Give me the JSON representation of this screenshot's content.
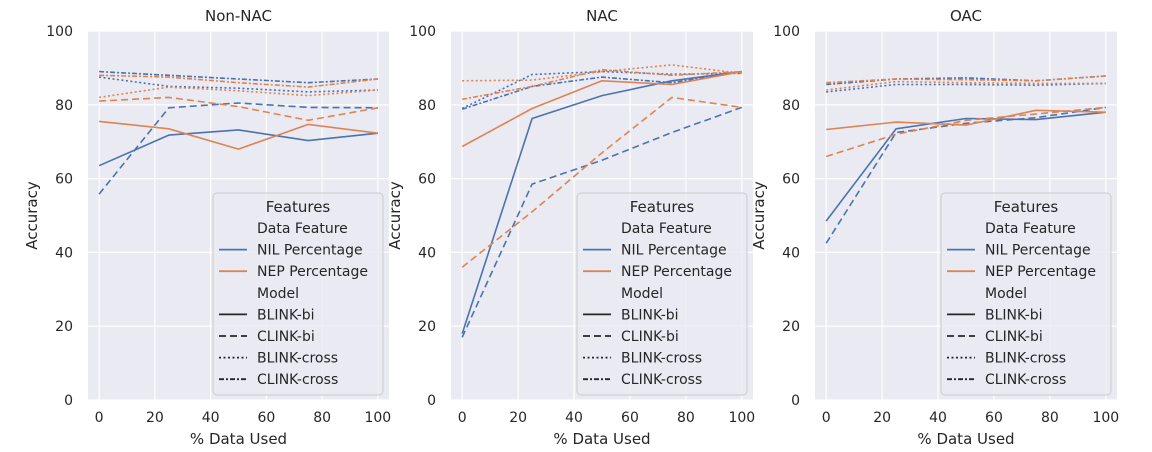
{
  "chart_data": {
    "type": "line",
    "figure_panels": [
      "Non-NAC",
      "NAC",
      "OAC"
    ],
    "xlabel": "% Data Used",
    "ylabel": "Accuracy",
    "x": [
      0,
      25,
      50,
      75,
      100
    ],
    "xticks": [
      "0",
      "20",
      "40",
      "60",
      "80",
      "100"
    ],
    "yticks": [
      "0",
      "20",
      "40",
      "60",
      "80",
      "100"
    ],
    "xlim": [
      -4,
      104
    ],
    "ylim": [
      0,
      100
    ],
    "grid": true,
    "legend": {
      "title": "Features",
      "sub_feature": "Data Feature",
      "sub_model": "Model",
      "features": [
        "NIL Percentage",
        "NEP Percentage"
      ],
      "models": [
        "BLINK-bi",
        "CLINK-bi",
        "BLINK-cross",
        "CLINK-cross"
      ],
      "placement": "lower-right"
    },
    "colors": {
      "NIL Percentage": "#4c72b0",
      "NEP Percentage": "#dd8452",
      "background": "#eaeaf2",
      "grid": "#ffffff"
    },
    "panels": [
      {
        "title": "Non-NAC",
        "series": [
          {
            "feature": "NIL Percentage",
            "model": "BLINK-bi",
            "values": [
              63.5,
              71.8,
              73.2,
              70.3,
              72.3
            ]
          },
          {
            "feature": "NIL Percentage",
            "model": "CLINK-bi",
            "values": [
              55.8,
              79.2,
              80.5,
              79.3,
              79.2
            ]
          },
          {
            "feature": "NIL Percentage",
            "model": "BLINK-cross",
            "values": [
              87.5,
              85.0,
              84.5,
              83.5,
              84.0
            ]
          },
          {
            "feature": "NIL Percentage",
            "model": "CLINK-cross",
            "values": [
              89.0,
              88.0,
              87.0,
              86.0,
              87.0
            ]
          },
          {
            "feature": "NEP Percentage",
            "model": "BLINK-bi",
            "values": [
              75.5,
              73.5,
              68.0,
              74.7,
              72.3
            ]
          },
          {
            "feature": "NEP Percentage",
            "model": "CLINK-bi",
            "values": [
              81.0,
              82.0,
              79.5,
              75.8,
              79.2
            ]
          },
          {
            "feature": "NEP Percentage",
            "model": "BLINK-cross",
            "values": [
              82.0,
              84.8,
              83.8,
              82.5,
              84.0
            ]
          },
          {
            "feature": "NEP Percentage",
            "model": "CLINK-cross",
            "values": [
              88.0,
              87.5,
              86.0,
              84.8,
              87.0
            ]
          }
        ]
      },
      {
        "title": "NAC",
        "series": [
          {
            "feature": "NIL Percentage",
            "model": "BLINK-bi",
            "values": [
              18.0,
              76.3,
              82.5,
              86.5,
              89.0
            ]
          },
          {
            "feature": "NIL Percentage",
            "model": "CLINK-bi",
            "values": [
              17.0,
              58.5,
              65.0,
              72.5,
              79.3
            ]
          },
          {
            "feature": "NIL Percentage",
            "model": "BLINK-cross",
            "values": [
              79.0,
              88.2,
              89.0,
              88.3,
              88.5
            ]
          },
          {
            "feature": "NIL Percentage",
            "model": "CLINK-cross",
            "values": [
              78.8,
              85.0,
              87.5,
              86.0,
              89.0
            ]
          },
          {
            "feature": "NEP Percentage",
            "model": "BLINK-bi",
            "values": [
              68.7,
              79.0,
              86.5,
              85.5,
              89.0
            ]
          },
          {
            "feature": "NEP Percentage",
            "model": "CLINK-bi",
            "values": [
              36.0,
              51.0,
              67.0,
              82.0,
              79.3
            ]
          },
          {
            "feature": "NEP Percentage",
            "model": "BLINK-cross",
            "values": [
              86.5,
              86.7,
              89.0,
              90.8,
              88.5
            ]
          },
          {
            "feature": "NEP Percentage",
            "model": "CLINK-cross",
            "values": [
              81.5,
              85.0,
              89.5,
              88.0,
              89.0
            ]
          }
        ]
      },
      {
        "title": "OAC",
        "series": [
          {
            "feature": "NIL Percentage",
            "model": "BLINK-bi",
            "values": [
              48.5,
              73.5,
              76.3,
              76.0,
              78.0
            ]
          },
          {
            "feature": "NIL Percentage",
            "model": "CLINK-bi",
            "values": [
              42.5,
              72.5,
              75.0,
              76.5,
              79.3
            ]
          },
          {
            "feature": "NIL Percentage",
            "model": "BLINK-cross",
            "values": [
              83.5,
              85.5,
              85.5,
              85.3,
              85.8
            ]
          },
          {
            "feature": "NIL Percentage",
            "model": "CLINK-cross",
            "values": [
              85.5,
              87.0,
              87.3,
              86.5,
              87.8
            ]
          },
          {
            "feature": "NEP Percentage",
            "model": "BLINK-bi",
            "values": [
              73.3,
              75.3,
              74.5,
              78.5,
              78.0
            ]
          },
          {
            "feature": "NEP Percentage",
            "model": "CLINK-bi",
            "values": [
              66.0,
              72.0,
              75.8,
              77.5,
              79.3
            ]
          },
          {
            "feature": "NEP Percentage",
            "model": "BLINK-cross",
            "values": [
              84.0,
              86.3,
              86.0,
              85.8,
              85.8
            ]
          },
          {
            "feature": "NEP Percentage",
            "model": "CLINK-cross",
            "values": [
              86.0,
              87.0,
              86.8,
              86.5,
              87.8
            ]
          }
        ]
      }
    ]
  }
}
